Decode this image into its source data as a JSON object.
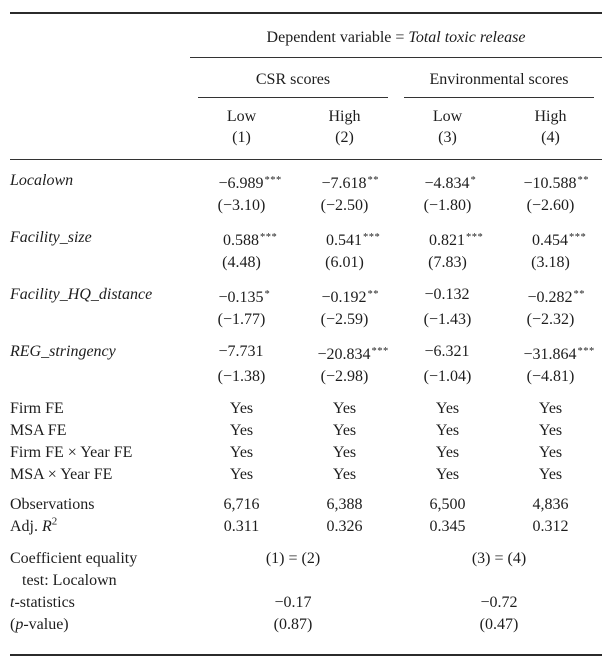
{
  "header": {
    "dep_var_prefix": "Dependent variable = ",
    "dep_var": "Total toxic release",
    "groups": [
      {
        "label": "CSR scores"
      },
      {
        "label": "Environmental scores"
      }
    ],
    "columns": [
      {
        "level": "Low",
        "number": "(1)"
      },
      {
        "level": "High",
        "number": "(2)"
      },
      {
        "level": "Low",
        "number": "(3)"
      },
      {
        "level": "High",
        "number": "(4)"
      }
    ]
  },
  "coefficients": [
    {
      "variable": "Localown",
      "cells": [
        {
          "estimate": "−6.989",
          "stars": "***",
          "tstat": "(−3.10)"
        },
        {
          "estimate": "−7.618",
          "stars": "**",
          "tstat": "(−2.50)"
        },
        {
          "estimate": "−4.834",
          "stars": "*",
          "tstat": "(−1.80)"
        },
        {
          "estimate": "−10.588",
          "stars": "**",
          "tstat": "(−2.60)"
        }
      ]
    },
    {
      "variable": "Facility_size",
      "cells": [
        {
          "estimate": "0.588",
          "stars": "***",
          "tstat": "(4.48)"
        },
        {
          "estimate": "0.541",
          "stars": "***",
          "tstat": "(6.01)"
        },
        {
          "estimate": "0.821",
          "stars": "***",
          "tstat": "(7.83)"
        },
        {
          "estimate": "0.454",
          "stars": "***",
          "tstat": "(3.18)"
        }
      ]
    },
    {
      "variable": "Facility_HQ_distance",
      "cells": [
        {
          "estimate": "−0.135",
          "stars": "*",
          "tstat": "(−1.77)"
        },
        {
          "estimate": "−0.192",
          "stars": "**",
          "tstat": "(−2.59)"
        },
        {
          "estimate": "−0.132",
          "stars": "",
          "tstat": "(−1.43)"
        },
        {
          "estimate": "−0.282",
          "stars": "**",
          "tstat": "(−2.32)"
        }
      ]
    },
    {
      "variable": "REG_stringency",
      "cells": [
        {
          "estimate": "−7.731",
          "stars": "",
          "tstat": "(−1.38)"
        },
        {
          "estimate": "−20.834",
          "stars": "***",
          "tstat": "(−2.98)"
        },
        {
          "estimate": "−6.321",
          "stars": "",
          "tstat": "(−1.04)"
        },
        {
          "estimate": "−31.864",
          "stars": "***",
          "tstat": "(−4.81)"
        }
      ]
    }
  ],
  "fixed_effects": [
    {
      "label": "Firm FE",
      "values": [
        "Yes",
        "Yes",
        "Yes",
        "Yes"
      ]
    },
    {
      "label": "MSA FE",
      "values": [
        "Yes",
        "Yes",
        "Yes",
        "Yes"
      ]
    },
    {
      "label": "Firm FE × Year FE",
      "values": [
        "Yes",
        "Yes",
        "Yes",
        "Yes"
      ]
    },
    {
      "label": "MSA × Year FE",
      "values": [
        "Yes",
        "Yes",
        "Yes",
        "Yes"
      ]
    }
  ],
  "statistics": {
    "observations": {
      "label": "Observations",
      "values": [
        "6,716",
        "6,388",
        "6,500",
        "4,836"
      ]
    },
    "adj_r2": {
      "label_prefix": "Adj. ",
      "label_symbol": "R",
      "label_sup": "2",
      "values": [
        "0.311",
        "0.326",
        "0.345",
        "0.312"
      ]
    }
  },
  "equality_test": {
    "label_line1": "Coefficient equality",
    "label_line2": "test: Localown",
    "pairs": [
      "(1) = (2)",
      "(3) = (4)"
    ],
    "tstat_label_italic": "t",
    "tstat_label_rest": "-statistics",
    "tstat_values": [
      "−0.17",
      "−0.72"
    ],
    "pvalue_label_italic": "p",
    "pvalue_label_pre": "(",
    "pvalue_label_rest": "-value)",
    "pvalue_values": [
      "(0.87)",
      "(0.47)"
    ]
  },
  "colors": {
    "background": "#ffffff",
    "text": "#1d1d1d",
    "rule": "#2b2b2b"
  }
}
